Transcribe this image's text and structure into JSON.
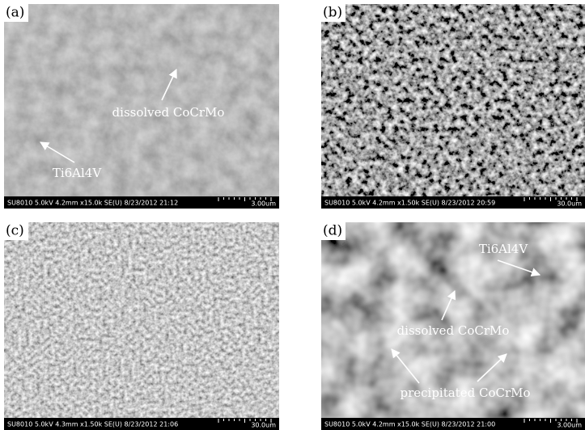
{
  "panels": [
    {
      "label": "(a)",
      "annotations": [
        "dissolved CoCrMo",
        "Ti6Al4V"
      ],
      "info": "SU8010 5.0kV 4.2mm x15.0k SE(U) 8/23/2012 21:12",
      "scale": "3.00um"
    },
    {
      "label": "(b)",
      "annotations": [],
      "info": "SU8010 5.0kV 4.2mm x1.50k SE(U) 8/23/2012 20:59",
      "scale": "30.0um"
    },
    {
      "label": "(c)",
      "annotations": [],
      "info": "SU8010 5.0kV 4.3mm x1.50k SE(U) 8/23/2012 21:06",
      "scale": "30.0um"
    },
    {
      "label": "(d)",
      "annotations": [
        "Ti6Al4V",
        "dissolved CoCrMo",
        "precipitated CoCrMo"
      ],
      "info": "SU8010 5.0kV 4.2mm x15.0k SE(U) 8/23/2012 21:00",
      "scale": "3.00um"
    }
  ]
}
